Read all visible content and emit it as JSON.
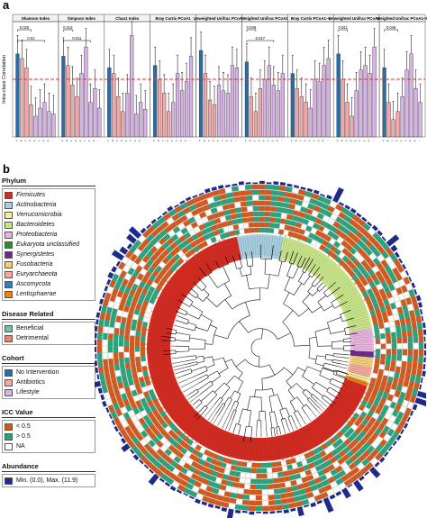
{
  "panel_a": {
    "label": "a",
    "ylabel": "Intra-class Correlation",
    "threshold_color": "#e8322b",
    "colors": {
      "no_intervention": "#2a6ca3",
      "antibiotics": "#f2a8a8",
      "lifestyle": "#d7b3e5"
    },
    "chart_data": {
      "type": "bar",
      "title": "",
      "ylabel": "Intra-class Correlation",
      "ylim": [
        0,
        1
      ],
      "threshold": 0.5,
      "facets": [
        {
          "title": "Shannon Index",
          "categories": [
            "A",
            "B",
            "C",
            "D",
            "E",
            "F",
            "G",
            "H",
            "I"
          ],
          "values": [
            0.72,
            0.68,
            0.6,
            0.28,
            0.18,
            0.25,
            0.3,
            0.22,
            0.2
          ],
          "groups": [
            "ni",
            "ab",
            "ab",
            "ab",
            "ls",
            "ls",
            "ls",
            "ls",
            "ls"
          ],
          "brackets": [
            {
              "label": "0.025",
              "from": 0,
              "to": 3
            },
            {
              "label": "0.02",
              "from": 0,
              "to": 6
            }
          ]
        },
        {
          "title": "Simpson Index",
          "categories": [
            "A",
            "B",
            "C",
            "D",
            "E",
            "F",
            "G",
            "H",
            "I"
          ],
          "values": [
            0.7,
            0.62,
            0.45,
            0.35,
            0.55,
            0.78,
            0.3,
            0.42,
            0.25
          ],
          "groups": [
            "ni",
            "ab",
            "ab",
            "ab",
            "ls",
            "ls",
            "ls",
            "ls",
            "ls"
          ],
          "brackets": [
            {
              "label": "0.012",
              "from": 0,
              "to": 2
            },
            {
              "label": "0.011",
              "from": 0,
              "to": 6
            }
          ]
        },
        {
          "title": "Chao1 Index",
          "categories": [
            "A",
            "B",
            "C",
            "D",
            "E",
            "F",
            "G",
            "H",
            "I"
          ],
          "values": [
            0.6,
            0.55,
            0.35,
            0.22,
            0.38,
            0.88,
            0.2,
            0.3,
            0.24
          ],
          "groups": [
            "ni",
            "ab",
            "ab",
            "ab",
            "ls",
            "ls",
            "ls",
            "ls",
            "ls"
          ],
          "brackets": []
        },
        {
          "title": "Bray Curtis PCoA1",
          "categories": [
            "A",
            "B",
            "C",
            "D",
            "E",
            "F",
            "G",
            "H",
            "I"
          ],
          "values": [
            0.62,
            0.5,
            0.38,
            0.22,
            0.3,
            0.55,
            0.4,
            0.48,
            0.7
          ],
          "groups": [
            "ni",
            "ab",
            "ab",
            "ab",
            "ls",
            "ls",
            "ls",
            "ls",
            "ls"
          ],
          "brackets": []
        },
        {
          "title": "Unweighted Unifrac PCoA1",
          "categories": [
            "A",
            "B",
            "C",
            "D",
            "E",
            "F",
            "G",
            "H",
            "I"
          ],
          "values": [
            0.75,
            0.55,
            0.32,
            0.28,
            0.45,
            0.4,
            0.38,
            0.62,
            0.6
          ],
          "groups": [
            "ni",
            "ab",
            "ab",
            "ab",
            "ls",
            "ls",
            "ls",
            "ls",
            "ls"
          ],
          "brackets": []
        },
        {
          "title": "Weighted Unifrac PCoA1",
          "categories": [
            "A",
            "B",
            "C",
            "D",
            "E",
            "F",
            "G",
            "H",
            "I"
          ],
          "values": [
            0.65,
            0.35,
            0.22,
            0.42,
            0.5,
            0.62,
            0.45,
            0.4,
            0.55
          ],
          "groups": [
            "ni",
            "ab",
            "ab",
            "ab",
            "ls",
            "ls",
            "ls",
            "ls",
            "ls"
          ],
          "brackets": [
            {
              "label": "0.046",
              "from": 0,
              "to": 2
            },
            {
              "label": "0.017",
              "from": 0,
              "to": 6
            }
          ]
        },
        {
          "title": "Bray Curtis PCoA1–5",
          "categories": [
            "A",
            "B",
            "C",
            "D",
            "E",
            "F",
            "G",
            "H",
            "I"
          ],
          "values": [
            0.55,
            0.42,
            0.35,
            0.3,
            0.25,
            0.5,
            0.48,
            0.62,
            0.68
          ],
          "groups": [
            "ni",
            "ab",
            "ab",
            "ab",
            "ls",
            "ls",
            "ls",
            "ls",
            "ls"
          ],
          "brackets": []
        },
        {
          "title": "Unweighted Unifrac PCoA1–5",
          "categories": [
            "A",
            "B",
            "C",
            "D",
            "E",
            "F",
            "G",
            "H",
            "I"
          ],
          "values": [
            0.72,
            0.5,
            0.3,
            0.18,
            0.4,
            0.58,
            0.62,
            0.55,
            0.78
          ],
          "groups": [
            "ni",
            "ab",
            "ab",
            "ab",
            "ls",
            "ls",
            "ls",
            "ls",
            "ls"
          ],
          "brackets": [
            {
              "label": "0.041",
              "from": 0,
              "to": 2
            }
          ]
        },
        {
          "title": "Weighted Unifrac PCoA1–5",
          "categories": [
            "A",
            "B",
            "C",
            "D",
            "E",
            "F",
            "G",
            "H",
            "I"
          ],
          "values": [
            0.6,
            0.3,
            0.15,
            0.22,
            0.35,
            0.58,
            0.72,
            0.42,
            0.3
          ],
          "groups": [
            "ni",
            "ab",
            "ab",
            "ab",
            "ls",
            "ls",
            "ls",
            "ls",
            "ls"
          ],
          "brackets": [
            {
              "label": "0.046",
              "from": 0,
              "to": 3
            }
          ]
        }
      ]
    }
  },
  "panel_b": {
    "label": "b",
    "legend": {
      "phylum": {
        "title": "Phylum",
        "items": [
          {
            "label": "Firmicutes",
            "color": "#d42a20"
          },
          {
            "label": "Actinobacteria",
            "color": "#a8cfe0"
          },
          {
            "label": "Verrucomicrobia",
            "color": "#f5ef9a"
          },
          {
            "label": "Bacteroidetes",
            "color": "#c9e58a"
          },
          {
            "label": "Proteobacteria",
            "color": "#e8b3dc"
          },
          {
            "label": "Eukaryota unclassified",
            "color": "#2e8b2e"
          },
          {
            "label": "Synergistetes",
            "color": "#6b2a8f"
          },
          {
            "label": "Fusobacteria",
            "color": "#f2d07a"
          },
          {
            "label": "Euryarchaeota",
            "color": "#f5a8a0"
          },
          {
            "label": "Ascomycota",
            "color": "#2f7fb8"
          },
          {
            "label": "Lentisphaerae",
            "color": "#f07f1a"
          }
        ]
      },
      "disease": {
        "title": "Disease Related",
        "items": [
          {
            "label": "Beneficial",
            "color": "#6fc3a3"
          },
          {
            "label": "Detrimental",
            "color": "#e8866a"
          }
        ]
      },
      "cohort": {
        "title": "Cohort",
        "items": [
          {
            "label": "No Intervention",
            "color": "#2a6ca3"
          },
          {
            "label": "Antibiotics",
            "color": "#f2a8a8"
          },
          {
            "label": "Lifestyle",
            "color": "#d7b3e5"
          }
        ]
      },
      "icc": {
        "title": "ICC Value",
        "items": [
          {
            "label": "< 0.5",
            "color": "#d4581b"
          },
          {
            "label": "> 0.5",
            "color": "#2aa37a"
          },
          {
            "label": "NA",
            "color": "#ffffff"
          }
        ]
      },
      "abundance": {
        "title": "Abundance",
        "items": [
          {
            "label": "Min. (0.0), Max. (11.9)",
            "color": "#1f2a8a"
          }
        ]
      }
    },
    "tree": {
      "phylum_arcs": [
        {
          "phylum": "Firmicutes",
          "start": 105,
          "end": 348
        },
        {
          "phylum": "Actinobacteria",
          "start": 348,
          "end": 372
        },
        {
          "phylum": "Bacteroidetes",
          "start": 372,
          "end": 440
        },
        {
          "phylum": "Proteobacteria",
          "start": 440,
          "end": 452
        },
        {
          "phylum": "Synergistetes",
          "start": 452,
          "end": 455
        },
        {
          "phylum": "Fusobacteria",
          "start": 455,
          "end": 460
        },
        {
          "phylum": "Euryarchaeota",
          "start": 460,
          "end": 465
        },
        {
          "phylum": "Verrucomicrobia",
          "start": 465,
          "end": 468
        },
        {
          "phylum": "Lentisphaerae",
          "start": 468,
          "end": 470
        }
      ],
      "gap": {
        "start": 470,
        "end": 468
      },
      "ring_colors": {
        "low": "#d4581b",
        "high": "#2aa37a",
        "na": "#ffffff",
        "tip_high": "#6fc3a3",
        "tip_low": "#e8866a",
        "abundance": "#1f2a8a"
      }
    }
  }
}
